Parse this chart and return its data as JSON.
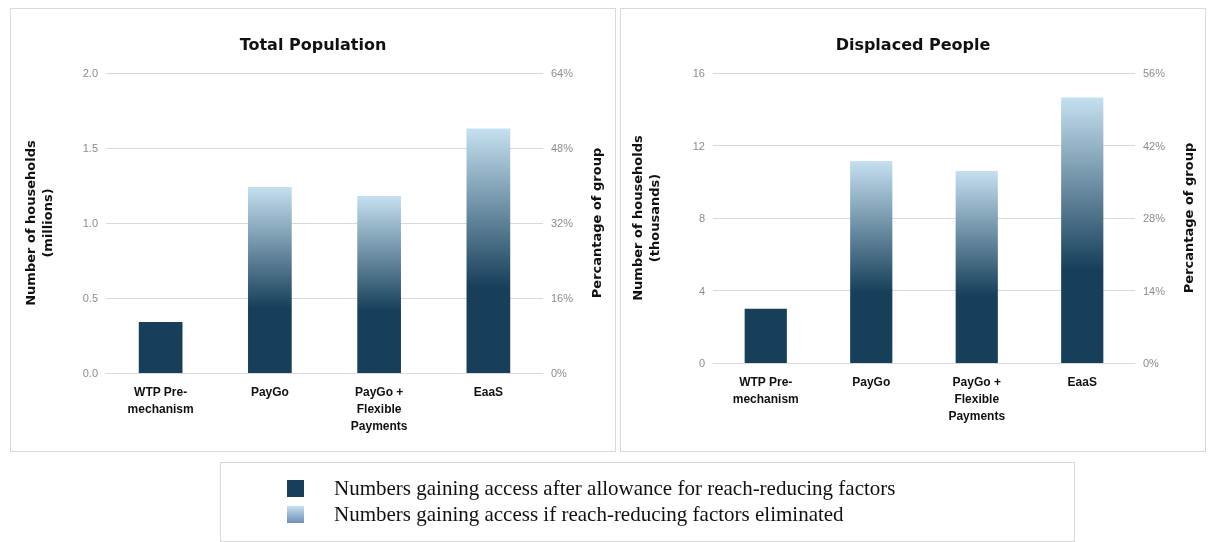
{
  "chart_data": [
    {
      "type": "bar",
      "title": "Total Population",
      "ylabel": "Number of households\n(millions)",
      "y2label": "Percantage of group",
      "categories": [
        "WTP Pre-\nmechanism",
        "PayGo",
        "PayGo +\nFlexible\nPayments",
        "EaaS"
      ],
      "stacked": true,
      "series": [
        {
          "name": "Numbers gaining access after allowance for reach-reducing factors",
          "color": "#173f5a",
          "values": [
            0.34,
            null,
            null,
            null
          ]
        },
        {
          "name": "Numbers gaining access if reach-reducing factors eliminated",
          "color": "#c5e0f0",
          "values": [
            null,
            1.24,
            1.18,
            1.63
          ]
        }
      ],
      "ylim": [
        0,
        2
      ],
      "yticks": [
        {
          "value": 0,
          "label": "0.0"
        },
        0.5,
        {
          "value": 1,
          "label": "1.0"
        },
        1.5,
        {
          "value": 2,
          "label": "2.0"
        }
      ],
      "y2lim": [
        0,
        64
      ],
      "y2ticks": [
        {
          "value": 0,
          "label": "0%"
        },
        {
          "value": 16,
          "label": "16%"
        },
        {
          "value": 32,
          "label": "32%"
        },
        {
          "value": 48,
          "label": "48%"
        },
        {
          "value": 64,
          "label": "64%"
        }
      ],
      "grid": "y",
      "legend": "bottom"
    },
    {
      "type": "bar",
      "title": "Displaced People",
      "ylabel": "Number of households\n(thousands)",
      "y2label": "Percantage of group",
      "categories": [
        "WTP Pre-\nmechanism",
        "PayGo",
        "PayGo +\nFlexible\nPayments",
        "EaaS"
      ],
      "stacked": true,
      "series": [
        {
          "color": "#173f5a",
          "values": [
            3.0,
            null,
            null,
            null
          ]
        },
        {
          "color": "#c5e0f0",
          "values": [
            null,
            11.15,
            10.6,
            14.65
          ]
        }
      ],
      "ylim": [
        0,
        16
      ],
      "yticks": [
        0,
        4,
        8,
        12,
        16
      ],
      "y2lim": [
        0,
        56
      ],
      "y2ticks": [
        {
          "value": 0,
          "label": "0%"
        },
        {
          "value": 14,
          "label": "14%"
        },
        {
          "value": 28,
          "label": "28%"
        },
        {
          "value": 42,
          "label": "42%"
        },
        {
          "value": 56,
          "label": "56%"
        }
      ],
      "grid": "y"
    }
  ]
}
